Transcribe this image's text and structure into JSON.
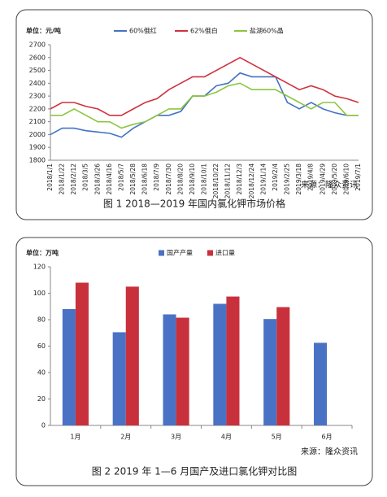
{
  "chart_data": [
    {
      "type": "line",
      "unit": "单位：元/吨",
      "source": "来源：隆众资讯",
      "caption": "图 1  2018—2019 年国内氯化钾市场价格",
      "categories": [
        "2018/1/1",
        "2018/1/22",
        "2018/2/12",
        "2018/3/5",
        "2018/3/26",
        "2018/4/16",
        "2018/5/7",
        "2018/5/28",
        "2018/6/18",
        "2018/7/9",
        "2018/7/30",
        "2018/8/20",
        "2018/9/10",
        "2018/10/1",
        "2018/10/22",
        "2018/11/12",
        "2018/12/3",
        "2018/12/24",
        "2019/1/14",
        "2019/2/4",
        "2019/2/25",
        "2019/3/18",
        "2019/4/8",
        "2019/4/29",
        "2019/5/20",
        "2019/6/10",
        "2019/7/1"
      ],
      "series": [
        {
          "name": "60%俄红",
          "color": "#4472c4",
          "values": [
            2000,
            2050,
            2050,
            2030,
            2020,
            2010,
            1980,
            2050,
            2100,
            2150,
            2150,
            2180,
            2300,
            2300,
            2380,
            2400,
            2480,
            2450,
            2450,
            2450,
            2250,
            2200,
            2250,
            2200,
            2170,
            2150,
            2150
          ]
        },
        {
          "name": "62%俄白",
          "color": "#d0313c",
          "values": [
            2200,
            2250,
            2250,
            2220,
            2200,
            2150,
            2150,
            2200,
            2250,
            2280,
            2350,
            2400,
            2450,
            2450,
            2500,
            2550,
            2600,
            2550,
            2500,
            2450,
            2400,
            2350,
            2380,
            2350,
            2300,
            2280,
            2250
          ]
        },
        {
          "name": "盐湖60%晶",
          "color": "#8cc63f",
          "values": [
            2150,
            2150,
            2200,
            2150,
            2100,
            2100,
            2050,
            2080,
            2100,
            2150,
            2200,
            2200,
            2300,
            2300,
            2330,
            2380,
            2400,
            2350,
            2350,
            2350,
            2300,
            2250,
            2200,
            2250,
            2250,
            2150,
            2150
          ]
        }
      ],
      "ylim": [
        1800,
        2700
      ],
      "yticks": [
        1800,
        1900,
        2000,
        2100,
        2200,
        2300,
        2400,
        2500,
        2600,
        2700
      ],
      "grid": false
    },
    {
      "type": "bar",
      "unit": "单位：万吨",
      "source": "来源：隆众资讯",
      "caption": "图 2  2019 年 1—6 月国产及进口氯化钾对比图",
      "categories": [
        "1月",
        "2月",
        "3月",
        "4月",
        "5月",
        "6月"
      ],
      "series": [
        {
          "name": "国产产量",
          "color": "#4a72c4",
          "values": [
            88,
            70.5,
            84,
            92,
            80.5,
            62.5
          ]
        },
        {
          "name": "进口量",
          "color": "#c8313c",
          "values": [
            108,
            105,
            81.5,
            97.5,
            89.5,
            null
          ]
        }
      ],
      "ylim": [
        0,
        120
      ],
      "yticks": [
        0,
        20,
        40,
        60,
        80,
        100,
        120
      ],
      "grid": false
    }
  ]
}
